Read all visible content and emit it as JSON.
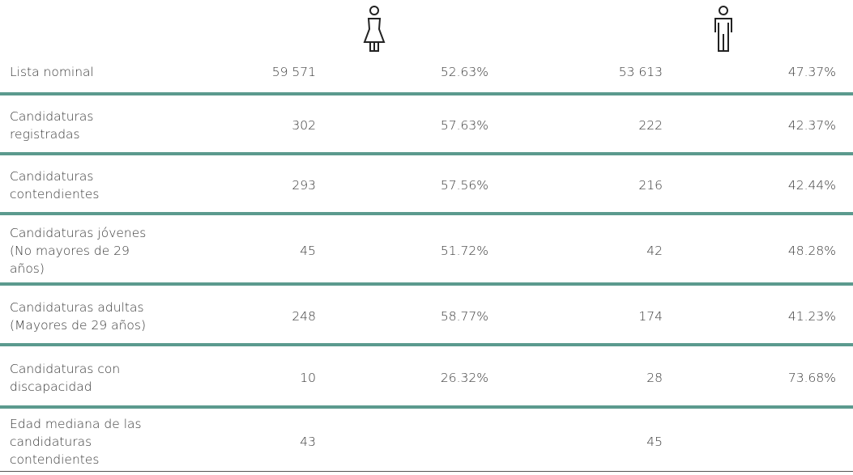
{
  "table": {
    "rows": [
      {
        "label": "Lista nominal",
        "women": "59 571",
        "women_pct": "52.63%",
        "men": "53 613",
        "men_pct": "47.37%"
      },
      {
        "label": "Candidaturas registradas",
        "women": "302",
        "women_pct": "57.63%",
        "men": "222",
        "men_pct": "42.37%"
      },
      {
        "label": "Candidaturas contendientes",
        "women": "293",
        "women_pct": "57.56%",
        "men": "216",
        "men_pct": "42.44%"
      },
      {
        "label": "Candidaturas jóvenes (No mayores de 29 años)",
        "women": "45",
        "women_pct": "51.72%",
        "men": "42",
        "men_pct": "48.28%"
      },
      {
        "label": "Candidaturas adultas (Mayores de 29 años)",
        "women": "248",
        "women_pct": "58.77%",
        "men": "174",
        "men_pct": "41.23%"
      },
      {
        "label": "Candidaturas con discapacidad",
        "women": "10",
        "women_pct": "26.32%",
        "men": "28",
        "men_pct": "73.68%"
      },
      {
        "label": "Edad mediana de las candidaturas contendientes",
        "women": "43",
        "men": "45"
      }
    ]
  }
}
